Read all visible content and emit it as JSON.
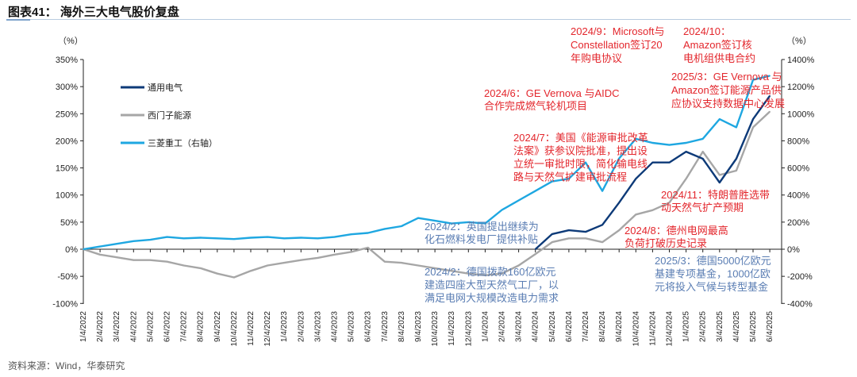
{
  "title": "图表41：  海外三大电气股价复盘",
  "source": "资料来源：Wind，华泰研究",
  "chart_data": {
    "type": "line",
    "title": "海外三大电气股价复盘",
    "left_axis": {
      "unit_label": "（%）",
      "ylim": [
        -100,
        350
      ],
      "ticks": [
        -100,
        -50,
        0,
        50,
        100,
        150,
        200,
        250,
        300,
        350
      ],
      "tick_labels": [
        "-100%",
        "-50%",
        "0%",
        "50%",
        "100%",
        "150%",
        "200%",
        "250%",
        "300%",
        "350%"
      ]
    },
    "right_axis": {
      "unit_label": "（%）",
      "ylim": [
        -400,
        1400
      ],
      "ticks": [
        -400,
        -200,
        0,
        200,
        400,
        600,
        800,
        1000,
        1200,
        1400
      ],
      "tick_labels": [
        "-400%",
        "-200%",
        "0%",
        "200%",
        "400%",
        "600%",
        "800%",
        "1000%",
        "1200%",
        "1400%"
      ]
    },
    "categories": [
      "1/4/2022",
      "2/4/2022",
      "3/4/2022",
      "4/4/2022",
      "5/4/2022",
      "6/4/2022",
      "7/4/2022",
      "8/4/2022",
      "9/4/2022",
      "10/4/2022",
      "11/4/2022",
      "12/4/2022",
      "1/4/2023",
      "2/4/2023",
      "3/4/2023",
      "4/4/2023",
      "5/4/2023",
      "6/4/2023",
      "7/4/2023",
      "8/4/2023",
      "9/4/2023",
      "10/4/2023",
      "11/4/2023",
      "12/4/2023",
      "1/4/2024",
      "2/4/2024",
      "3/4/2024",
      "4/4/2024",
      "5/4/2024",
      "6/4/2024",
      "7/4/2024",
      "8/4/2024",
      "9/4/2024",
      "10/4/2024",
      "11/4/2024",
      "12/4/2024",
      "1/4/2025",
      "2/4/2025",
      "3/4/2025",
      "4/4/2025",
      "5/4/2025",
      "6/4/2025"
    ],
    "series": [
      {
        "name": "通用电气",
        "axis": "left",
        "color": "#0d3a78",
        "values": [
          null,
          null,
          null,
          null,
          null,
          null,
          null,
          null,
          null,
          null,
          null,
          null,
          null,
          null,
          null,
          null,
          null,
          null,
          null,
          null,
          null,
          null,
          null,
          null,
          null,
          null,
          null,
          0,
          28,
          35,
          32,
          45,
          86,
          130,
          160,
          160,
          180,
          167,
          123,
          167,
          240,
          283
        ]
      },
      {
        "name": "西门子能源",
        "axis": "left",
        "color": "#a6a6a6",
        "values": [
          0,
          -10,
          -15,
          -20,
          -20,
          -23,
          -30,
          -35,
          -45,
          -52,
          -40,
          -30,
          -25,
          -20,
          -16,
          -10,
          -5,
          3,
          -23,
          -25,
          -30,
          -35,
          -40,
          -45,
          -48,
          -45,
          -30,
          -9,
          13,
          20,
          20,
          13,
          35,
          64,
          72,
          86,
          130,
          180,
          137,
          145,
          225,
          254
        ]
      },
      {
        "name": "三菱重工（右轴）",
        "axis": "right",
        "color": "#1ea7e1",
        "values": [
          0,
          20,
          40,
          60,
          70,
          90,
          80,
          85,
          80,
          75,
          85,
          90,
          80,
          85,
          80,
          90,
          110,
          120,
          150,
          170,
          230,
          210,
          190,
          200,
          190,
          290,
          360,
          430,
          500,
          520,
          640,
          430,
          670,
          815,
          785,
          770,
          785,
          815,
          960,
          900,
          1250,
          1280
        ]
      }
    ],
    "legend_position": "top-left",
    "annotations": [
      {
        "color": "red",
        "lines": [
          "2024/9：Microsoft与",
          "Constellation签订20",
          "年购电协议"
        ]
      },
      {
        "color": "red",
        "lines": [
          "2024/10：",
          "Amazon签订核",
          "电机组供电合约"
        ]
      },
      {
        "color": "red",
        "lines": [
          "2025/3：GE Vernova 与",
          "Amazon签订能源产品供",
          "应协议支持数据中心发展"
        ]
      },
      {
        "color": "red",
        "lines": [
          "2024/6：GE Vernova 与AIDC",
          "合作完成燃气轮机项目"
        ]
      },
      {
        "color": "red",
        "lines": [
          "2024/7：美国《能源审批改革",
          "法案》获参议院批准，提出设",
          "立统一审批时限，简化输电线",
          "路与天然气扩建审批流程"
        ]
      },
      {
        "color": "blue",
        "lines": [
          "2024/2：英国提出继续为",
          "化石燃料发电厂提供补贴"
        ]
      },
      {
        "color": "blue",
        "lines": [
          "2024/2：德国拨款160亿欧元",
          "建造四座大型天然气工厂，以",
          "满足电网大规模改造电力需求"
        ]
      },
      {
        "color": "red",
        "lines": [
          "2024/8：德州电网最高",
          "负荷打破历史记录"
        ]
      },
      {
        "color": "red",
        "lines": [
          "2024/11：特朗普胜选带",
          "动天然气扩产预期"
        ]
      },
      {
        "color": "blue",
        "lines": [
          "2025/3：德国5000亿欧元",
          "基建专项基金，1000亿欧",
          "元将投入气候与转型基金"
        ]
      }
    ],
    "annotation_colors": {
      "red": "#e3262c",
      "blue": "#5a7db3"
    }
  }
}
